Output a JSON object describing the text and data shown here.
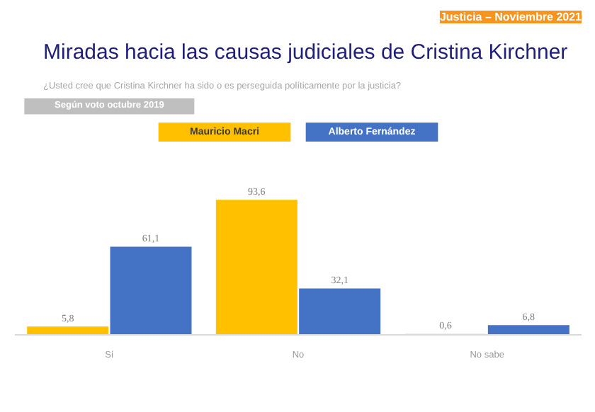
{
  "chart_data": {
    "type": "bar",
    "title": "Miradas hacia las causas judiciales de Cristina Kirchner",
    "subtitle": "¿Usted cree que Cristina Kirchner ha sido o es perseguida políticamente por la justicia?",
    "legend_title": "Según voto octubre 2019",
    "annotations": [
      "Justicia – Noviembre 2021"
    ],
    "categories": [
      "Sí",
      "No",
      "No sabe"
    ],
    "series": [
      {
        "name": "Mauricio Macri",
        "color": "#ffc000",
        "values": [
          5.8,
          93.6,
          0.6
        ],
        "value_labels": [
          "5,8",
          "93,6",
          "0,6"
        ]
      },
      {
        "name": "Alberto Fernández",
        "color": "#4472c4",
        "values": [
          61.1,
          32.1,
          6.8
        ],
        "value_labels": [
          "61,1",
          "32,1",
          "6,8"
        ]
      }
    ],
    "legend": "top",
    "grid": false
  }
}
